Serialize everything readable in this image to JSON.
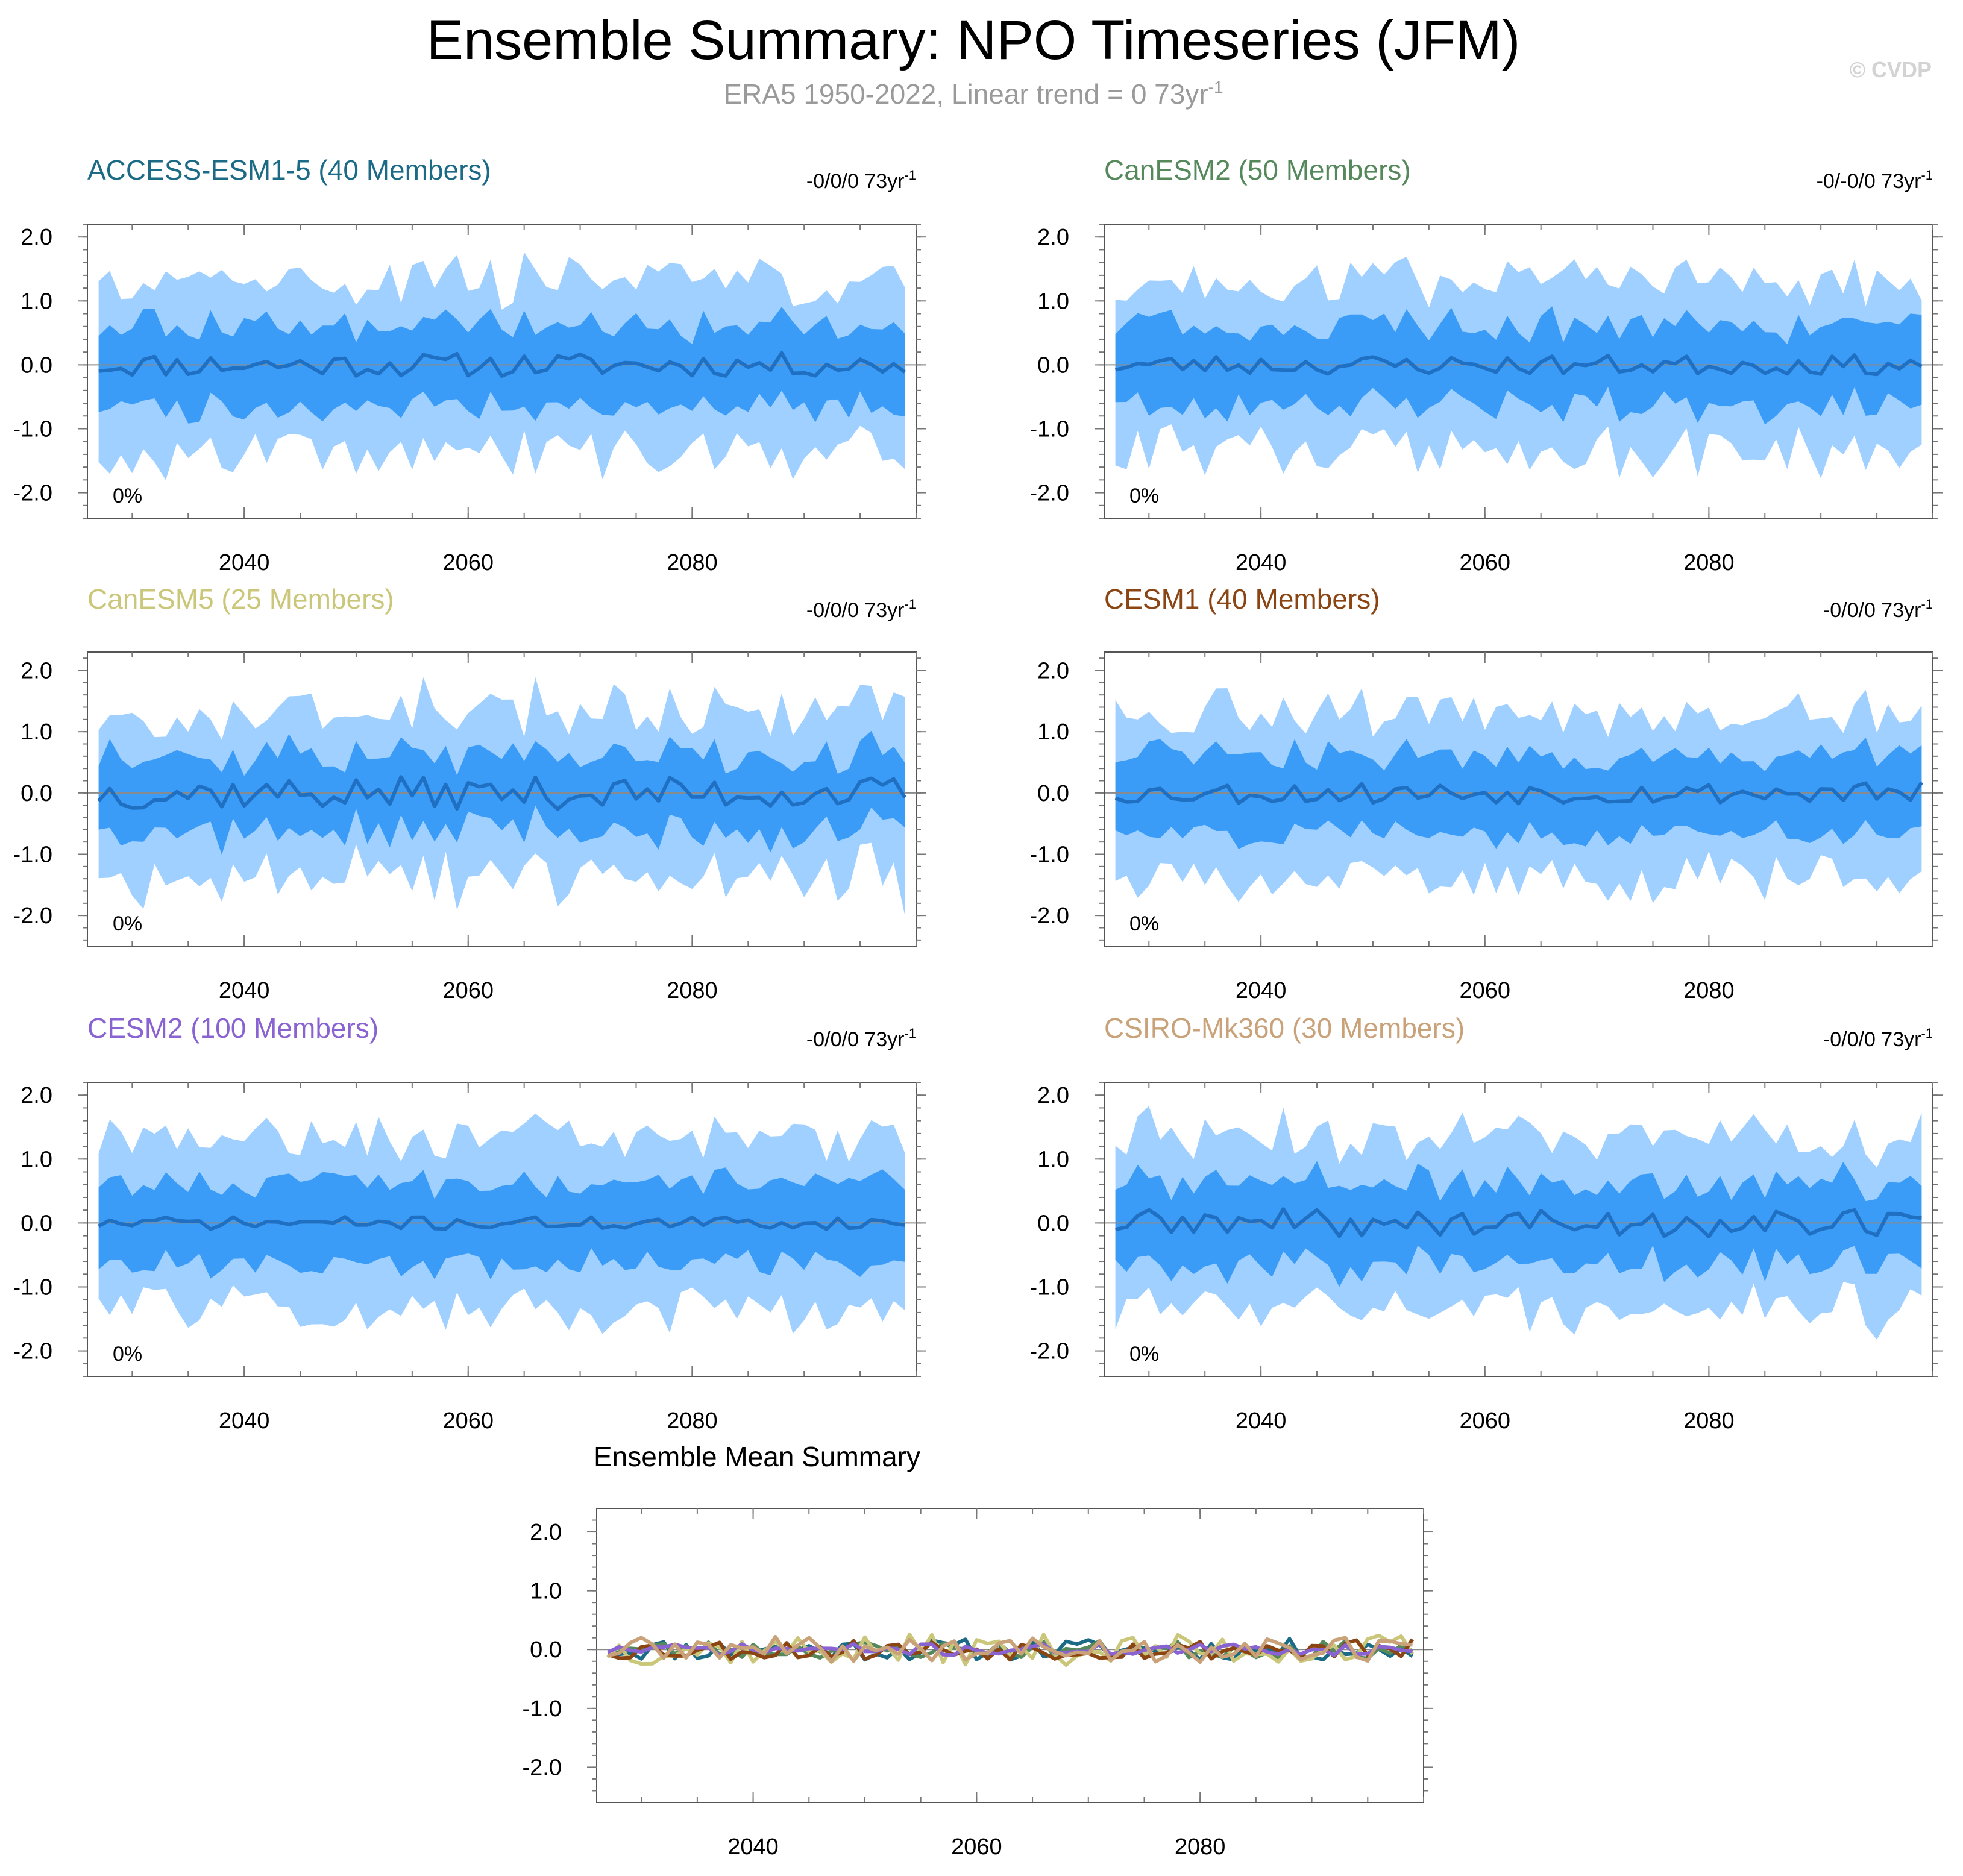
{
  "figure": {
    "title": "Ensemble Summary: NPO Timeseries (JFM)",
    "subtitle_prefix": "ERA5 1950-2022, Linear trend = 0 73yr",
    "subtitle_sup": "-1",
    "credit": "© CVDP"
  },
  "colors": {
    "outer_band": "#a0d0ff",
    "inner_band": "#3a9cf6",
    "mean_line": "#1f6fc2",
    "zero_line": "#8a8a8a"
  },
  "chart_data": [
    {
      "type": "area",
      "id": "access",
      "title": "ACCESS-ESM1-5 (40 Members)",
      "title_color": "#1b6a86",
      "trend": "-0/0/0 73yr",
      "trend_sup": "-1",
      "pct": "0%",
      "x_range": [
        2026,
        2100
      ],
      "ylim": [
        -2.4,
        2.2
      ],
      "yticks": [
        "2.0",
        "1.0",
        "0.0",
        "-1.0",
        "-2.0"
      ],
      "xticks": [
        "2040",
        "2060",
        "2080"
      ],
      "seed": 11,
      "mean_amp": 0.17,
      "inner_w": 0.6,
      "outer_w": 1.28,
      "flare": 0
    },
    {
      "type": "area",
      "id": "canesm2",
      "title": "CanESM2 (50 Members)",
      "title_color": "#55885a",
      "trend": "-0/-0/0 73yr",
      "trend_sup": "-1",
      "pct": "0%",
      "x_range": [
        2026,
        2100
      ],
      "ylim": [
        -2.4,
        2.2
      ],
      "yticks": [
        "2.0",
        "1.0",
        "0.0",
        "-1.0",
        "-2.0"
      ],
      "xticks": [
        "2040",
        "2060",
        "2080"
      ],
      "seed": 23,
      "mean_amp": 0.14,
      "inner_w": 0.6,
      "outer_w": 1.28,
      "flare": 0
    },
    {
      "type": "area",
      "id": "canesm5",
      "title": "CanESM5 (25 Members)",
      "title_color": "#cbc77a",
      "trend": "-0/0/0 73yr",
      "trend_sup": "-1",
      "pct": "0%",
      "x_range": [
        2026,
        2100
      ],
      "ylim": [
        -2.5,
        2.3
      ],
      "yticks": [
        "2.0",
        "1.0",
        "0.0",
        "-1.0",
        "-2.0"
      ],
      "xticks": [
        "2040",
        "2060",
        "2080"
      ],
      "seed": 37,
      "mean_amp": 0.24,
      "inner_w": 0.6,
      "outer_w": 1.28,
      "flare": 1
    },
    {
      "type": "area",
      "id": "cesm1",
      "title": "CESM1 (40 Members)",
      "title_color": "#8b4513",
      "trend": "-0/0/0 73yr",
      "trend_sup": "-1",
      "pct": "0%",
      "x_range": [
        2026,
        2100
      ],
      "ylim": [
        -2.5,
        2.3
      ],
      "yticks": [
        "2.0",
        "1.0",
        "0.0",
        "-1.0",
        "-2.0"
      ],
      "xticks": [
        "2040",
        "2060",
        "2080"
      ],
      "seed": 53,
      "mean_amp": 0.16,
      "inner_w": 0.6,
      "outer_w": 1.28,
      "flare": 0
    },
    {
      "type": "area",
      "id": "cesm2",
      "title": "CESM2 (100 Members)",
      "title_color": "#8a63d2",
      "trend": "-0/0/0 73yr",
      "trend_sup": "-1",
      "pct": "0%",
      "x_range": [
        2026,
        2100
      ],
      "ylim": [
        -2.4,
        2.2
      ],
      "yticks": [
        "2.0",
        "1.0",
        "0.0",
        "-1.0",
        "-2.0"
      ],
      "xticks": [
        "2040",
        "2060",
        "2080"
      ],
      "seed": 71,
      "mean_amp": 0.09,
      "inner_w": 0.6,
      "outer_w": 1.28,
      "flare": 0
    },
    {
      "type": "area",
      "id": "csiro",
      "title": "CSIRO-Mk360 (30 Members)",
      "title_color": "#c9a27a",
      "trend": "-0/0/0 73yr",
      "trend_sup": "-1",
      "pct": "0%",
      "x_range": [
        2026,
        2100
      ],
      "ylim": [
        -2.4,
        2.2
      ],
      "yticks": [
        "2.0",
        "1.0",
        "0.0",
        "-1.0",
        "-2.0"
      ],
      "xticks": [
        "2040",
        "2060",
        "2080"
      ],
      "seed": 89,
      "mean_amp": 0.2,
      "inner_w": 0.6,
      "outer_w": 1.28,
      "flare": 0
    },
    {
      "type": "line",
      "id": "ensmean",
      "title": "Ensemble Mean Summary",
      "title_color": "#000000",
      "x_range": [
        2026,
        2100
      ],
      "ylim": [
        -2.6,
        2.4
      ],
      "yticks": [
        "2.0",
        "1.0",
        "0.0",
        "-1.0",
        "-2.0"
      ],
      "xticks": [
        "2040",
        "2060",
        "2080"
      ],
      "series": [
        {
          "name": "ACCESS-ESM1-5",
          "color": "#1b6a86",
          "seed": 11,
          "amp": 0.17
        },
        {
          "name": "CanESM2",
          "color": "#55885a",
          "seed": 23,
          "amp": 0.14
        },
        {
          "name": "CanESM5",
          "color": "#cbc77a",
          "seed": 37,
          "amp": 0.24
        },
        {
          "name": "CESM1",
          "color": "#8b4513",
          "seed": 53,
          "amp": 0.16
        },
        {
          "name": "CESM2",
          "color": "#8a63d2",
          "seed": 71,
          "amp": 0.09
        },
        {
          "name": "CSIRO-Mk360",
          "color": "#c9a27a",
          "seed": 89,
          "amp": 0.2
        }
      ]
    }
  ]
}
